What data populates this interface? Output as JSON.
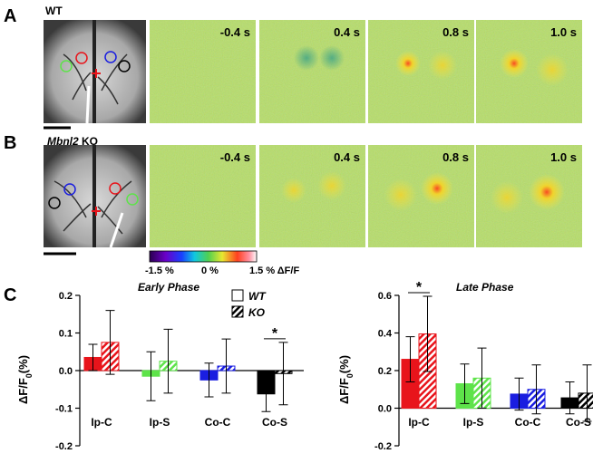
{
  "panel_a": {
    "label": "A",
    "genotype": "WT",
    "times": [
      "-0.4 s",
      "0.4 s",
      "0.8 s",
      "1.0 s"
    ]
  },
  "panel_b": {
    "label": "B",
    "genotype_gene": "Mbnl2",
    "genotype_suffix": "KO",
    "times": [
      "-0.4 s",
      "0.4 s",
      "0.8 s",
      "1.0 s"
    ]
  },
  "colorbar": {
    "labels": [
      "-1.5 %",
      "0 %",
      "1.5 % ΔF/F"
    ]
  },
  "panel_c": {
    "label": "C"
  },
  "chart_data": [
    {
      "type": "bar",
      "title": "Early Phase",
      "ylabel": [
        "ΔF/F",
        "0",
        "(%)"
      ],
      "categories": [
        "Ip-C",
        "Ip-S",
        "Co-C",
        "Co-S"
      ],
      "colors": [
        "#e8141b",
        "#5ee34a",
        "#1a1ee0",
        "#000000"
      ],
      "series": [
        {
          "name": "WT",
          "pattern": "solid",
          "values": [
            0.035,
            -0.015,
            -0.025,
            -0.062
          ],
          "errors": [
            0.035,
            0.065,
            0.045,
            0.047
          ]
        },
        {
          "name": "KO",
          "pattern": "hatched",
          "values": [
            0.075,
            0.025,
            0.012,
            -0.008
          ],
          "errors": [
            0.085,
            0.085,
            0.072,
            0.083
          ]
        }
      ],
      "ylim": [
        -0.2,
        0.2
      ],
      "yticks": [
        -0.2,
        -0.1,
        {
          "value": 0,
          "label": "0.0"
        },
        0.1,
        0.2
      ],
      "annotations": [
        {
          "text": "*",
          "category": "Co-S"
        }
      ]
    },
    {
      "type": "bar",
      "title": "Late Phase",
      "ylabel": [
        "ΔF/F",
        "0",
        "(%)"
      ],
      "categories": [
        "Ip-C",
        "Ip-S",
        "Co-C",
        "Co-S"
      ],
      "colors": [
        "#e8141b",
        "#5ee34a",
        "#1a1ee0",
        "#000000"
      ],
      "series": [
        {
          "pattern": "solid",
          "values": [
            0.26,
            0.13,
            0.075,
            0.055
          ],
          "errors": [
            0.12,
            0.105,
            0.085,
            0.085
          ]
        },
        {
          "pattern": "hatched",
          "values": [
            0.395,
            0.16,
            0.1,
            0.08
          ],
          "errors": [
            0.2,
            0.16,
            0.13,
            0.15
          ]
        }
      ],
      "ylim": [
        -0.2,
        0.6
      ],
      "yticks": [
        -0.2,
        {
          "value": 0,
          "label": "0.0"
        },
        0.2,
        0.4,
        0.6
      ],
      "annotations": [
        {
          "text": "*",
          "category": "Ip-C"
        }
      ]
    }
  ]
}
